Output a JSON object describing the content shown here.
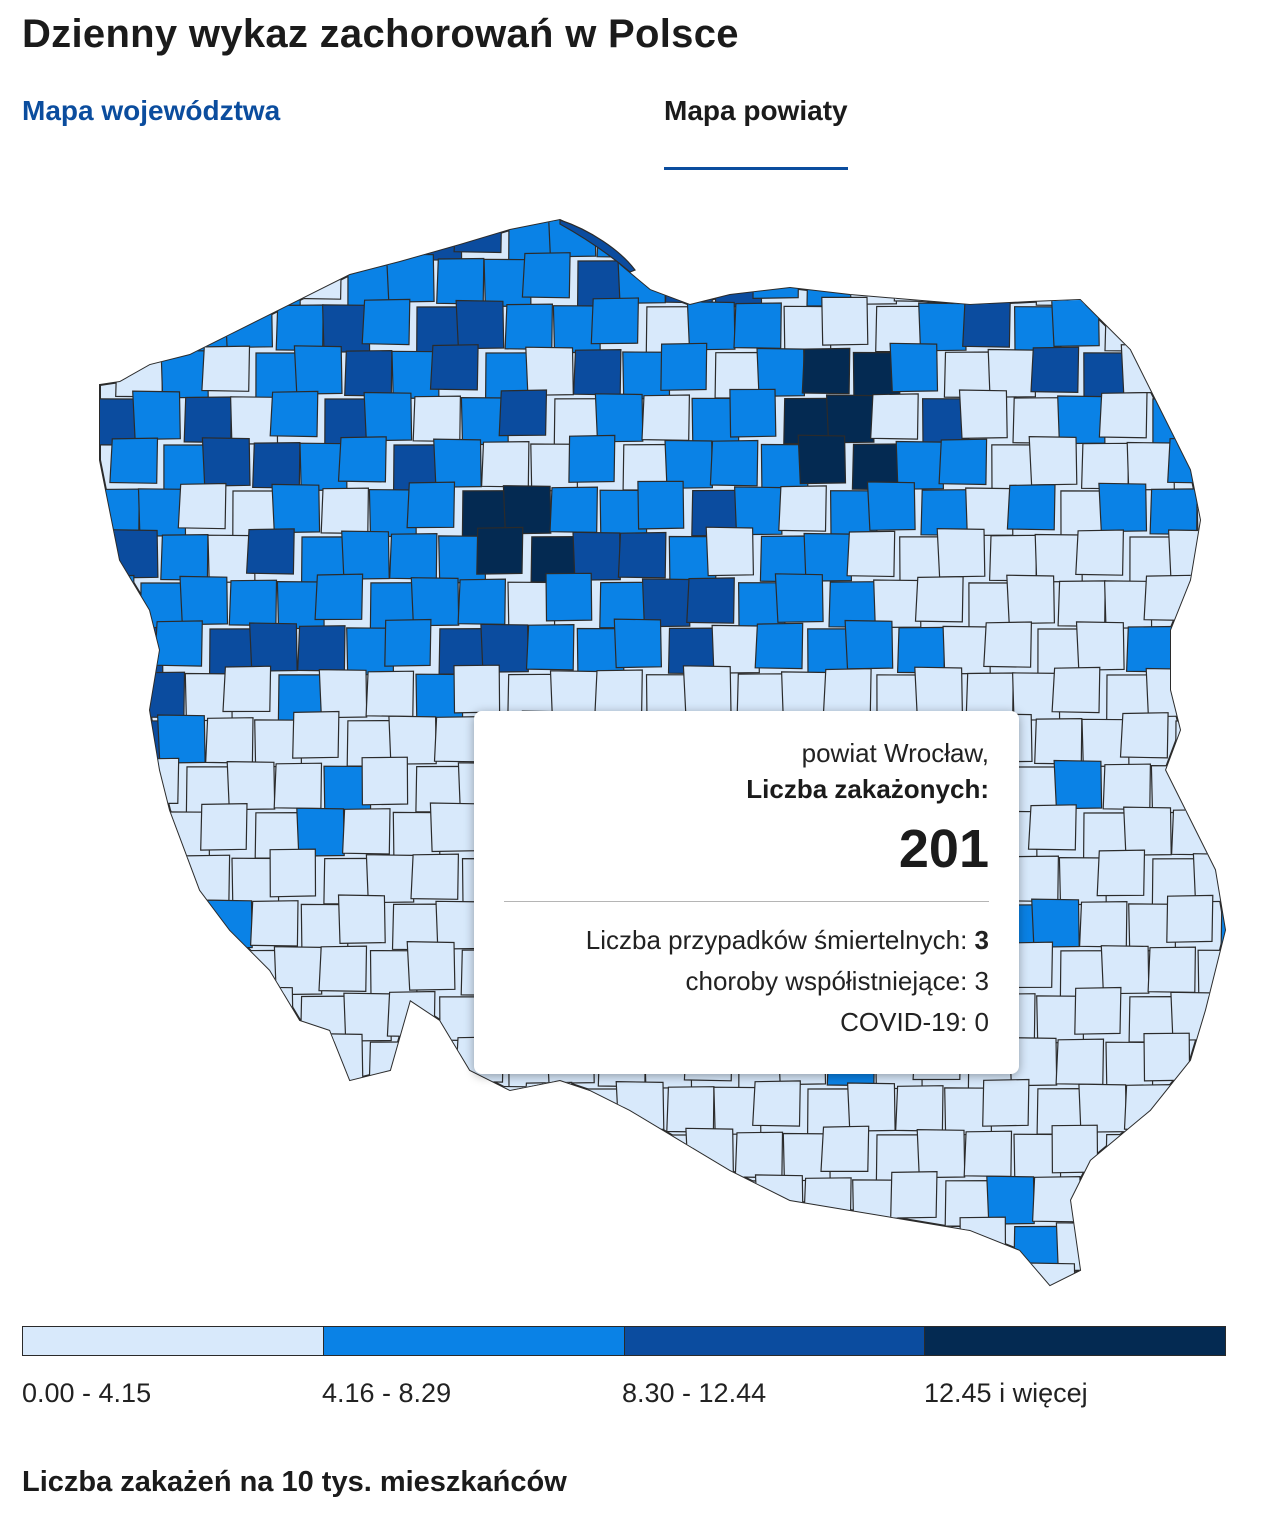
{
  "header": {
    "title": "Dzienny wykaz zachorowań w Polsce"
  },
  "tabs": [
    {
      "label": "Mapa województwa",
      "active": false
    },
    {
      "label": "Mapa powiaty",
      "active": true
    }
  ],
  "tooltip": {
    "name": "powiat Wrocław,",
    "cases_label": "Liczba zakażonych:",
    "cases_value": "201",
    "deaths_label": "Liczba przypadków śmiertelnych:",
    "deaths_value": "3",
    "comorbid_label": "choroby współistniejące:",
    "comorbid_value": "3",
    "covid_label": "COVID-19:",
    "covid_value": "0"
  },
  "legend": {
    "ranges": [
      {
        "label": "0.00 - 4.15",
        "color": "#d8e9fb"
      },
      {
        "label": "4.16 - 8.29",
        "color": "#0a82e6"
      },
      {
        "label": "8.30 - 12.44",
        "color": "#0b4c9f"
      },
      {
        "label": "12.45 i więcej",
        "color": "#042a52"
      }
    ],
    "caption": "Liczba zakażeń na 10 tys. mieszkańców"
  },
  "colors": {
    "region_stroke": "#2b2b2b",
    "accent": "#0b4d9e"
  }
}
